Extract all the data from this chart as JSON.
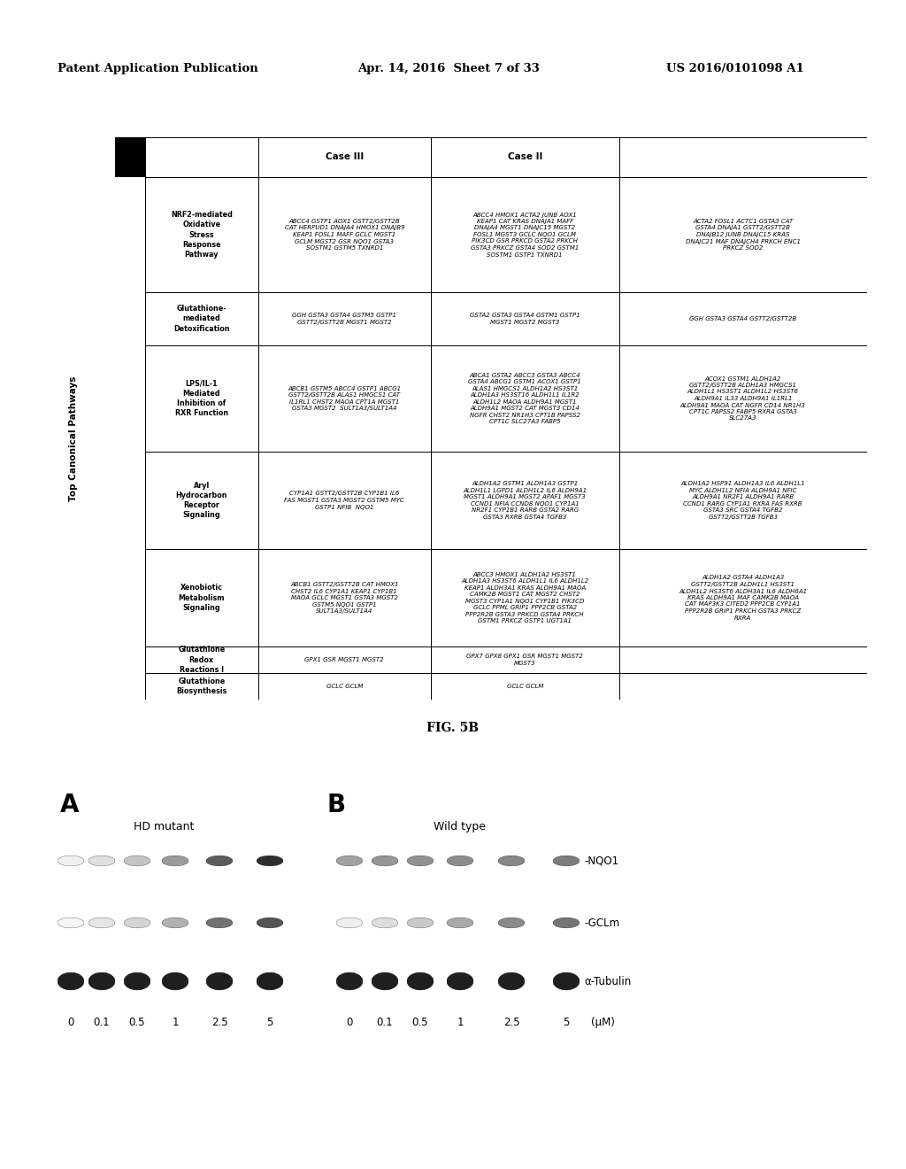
{
  "patent_header_left": "Patent Application Publication",
  "patent_header_mid": "Apr. 14, 2016  Sheet 7 of 33",
  "patent_header_right": "US 2016/0101098 A1",
  "fig_label": "FIG. 5B",
  "rows": [
    {
      "pathway": "NRF2-mediated\nOxidative\nStress\nResponse\nPathway",
      "case3": "ABCC4 GSTP1 AOX1 GSTT2/GSTT2B\nCAT HERPUD1 DNAJA4 HMOX1 DNAJB9\nKEAP1 FOSL1 MAFF GCLC MGST1\nGCLM MGST2 GSR NQO1 GSTA3\nSOSTM1 GSTM5 TXNRD1",
      "case2": "ABCC4 HMOX1 ACTA2 JUNB AOX1\nKEAP1 CAT KRAS DNAJA1 MAFF\nDNAJA4 MGST1 DNAJC15 MGST2\nFOSL1 MGST3 GCLC NQO1 GCLM\nPIK3CD GSR PRKCD GSTA2 PRKCH\nGSTA3 PRKCZ GSTA4 SOD2 GSTM1\nSOSTM1 GSTP1 TXNRD1",
      "casex": "ACTA2 FOSL1 ACTC1 GSTA3 CAT\nGSTA4 DNAJA1 GSTT2/GSTT2B\nDNAJB12 JUNB DNAJC15 KRAS\nDNAJC21 MAF DNAJCH4 PRKCH ENC1\nPRKCZ SOD2"
    },
    {
      "pathway": "Glutathione-\nmediated\nDetoxification",
      "case3": "GGH GSTA3 GSTA4 GSTM5 GSTP1\nGSTT2/GSTT2B MGST1 MGST2",
      "case2": "GSTA2 GSTA3 GSTA4 GSTM1 GSTP1\nMGST1 MGST2 MGST3",
      "casex": "GGH GSTA3 GSTA4 GSTT2/GSTT2B"
    },
    {
      "pathway": "LPS/IL-1\nMediated\nInhibition of\nRXR Function",
      "case3": "ABCB1 GSTM5 ABCC4 GSTP1 ABCG1\nGSTT2/GSTT2B ALAS1 HMGCS1 CAT\nIL1RL1 CHST2 MAOA CPT1A MGST1\nGSTA3 MGST2  SULT1A3/SULT1A4",
      "case2": "ABCA1 GSTA2 ABCC3 GSTA3 ABCC4\nGSTA4 ABCG1 GSTM1 ACOX1 GSTP1\nALAS1 HMGCS1 ALDH1A2 HS3ST1\nALDH1A3 HS3ST16 ALDH1L1 IL1R2\nALDH1L2 MAOA ALDH9A1 MGST1\nALDH9A1 MGST2 CAT MGST3 CD14\nNGFR CHST2 NR1H3 CPT1B PAPSS2\nCPT1C SLC27A3 FABP5",
      "casex": "ACOX1 GSTM1 ALDH1A2\nGSTT2/GSTT2B ALDH1A3 HMGCS1\nALDH1L1 HS3ST1 ALDH1L2 HS3ST6\nALDH9A1 IL33 ALDH9A1 IL1RL1\nALDH9A1 MAOA CAT NGFR CD14 NR1H3\nCPT1C PAPSS2 FABP5 RXRA GSTA3\nSLC27A3"
    },
    {
      "pathway": "Aryl\nHydrocarbon\nReceptor\nSignaling",
      "case3": "CYP1A1 GSTT2/GSTT2B CYP1B1 IL6\nFAS MGST1 GSTA3 MGST2 GSTM5 MYC\nGSTP1 NFIB  NQO1",
      "case2": "ALDH1A2 GSTM1 ALDH1A3 GSTP1\nALDH1L1 LGPD1 ALDH1L2 IL6 ALDH9A1\nMGST1 ALDH9A1 MGST2 APAF1 MGST3\nCCND1 NFIA CCND8 NQO1 CYP1A1\nNR2F1 CYP1B1 RARB GSTA2 RARG\nGSTA3 RXRB GSTA4 TGFB3",
      "casex": "ALDH1A2 HSP91 ALDH1A3 IL6 ALDH1L1\nMYC ALDH1L2 NFIA ALDH9A1 NFIC\nALDH9A1 NR2F1 ALDH9A1 RARB\nCCND1 RARG CYP1A1 RXRA FAS RXRB\nGSTA3 SRC GSTA4 TGFB2\nGSTT2/GSTT2B TGFB3"
    },
    {
      "pathway": "Xenobiotic\nMetabolism\nSignaling",
      "case3": "ABCB1 GSTT2/GSTT2B CAT HMOX1\nCHST2 IL6 CYP1A1 KEAP1 CYP1B1\nMAOA GCLC MGST1 GSTA3 MGST2\nGSTM5 NQO1 GSTP1\nSULT1A3/SULT1A4",
      "case2": "ABCC3 HMOX1 ALDH1A2 HS3ST1\nALDH1A3 HS3ST6 ALDH1L1 IL6 ALDH1L2\nKEAP1 ALDH3A1 KRAS ALDH9A1 MAOA\nCAMK2B MGST1 CAT MGST2 CHST2\nMGST3 CYP1A1 NQO1 CYP1B1 PIK3CD\nGCLC PPML GRIP1 PPP2CB GSTA2\nPPP2R2B GSTA3 PRKCD GSTA4 PRKCH\nGSTM1 PRKCZ GSTP1 UGT1A1",
      "casex": "ALDH1A2 GSTA4 ALDH1A3\nGSTT2/GSTT2B ALDH1L1 HS3ST1\nALDH1L2 HS3ST6 ALDH3A1 IL6 ALDH6A1\nKRAS ALDH9A1 MAF CAMK2B MAOA\nCAT MAP3K3 CITED2 PPP2CB CYP1A1\nPPP2R2B GRIP1 PRKCH GSTA3 PRKCZ\nRXRA"
    },
    {
      "pathway": "Glutathione\nRedox\nReactions I",
      "case3": "GPX1 GSR MGST1 MGST2",
      "case2": "GPX7 GPX8 GPX1 GSR MGST1 MGST2\nMGST3",
      "casex": ""
    },
    {
      "pathway": "Glutathione\nBiosynthesis",
      "case3": "GCLC GCLM",
      "case2": "GCLC GCLM",
      "casex": ""
    }
  ],
  "wb_label_A": "A",
  "wb_label_B": "B",
  "wb_HD_mutant": "HD mutant",
  "wb_Wild_type": "Wild type",
  "wb_band_labels": [
    "-NQO1",
    "-GCLm",
    "α-Tubulin"
  ],
  "wb_hd_intensities": [
    [
      0.07,
      0.15,
      0.28,
      0.48,
      0.78,
      1.0
    ],
    [
      0.05,
      0.12,
      0.2,
      0.38,
      0.68,
      0.82
    ],
    [
      1.0,
      1.0,
      1.0,
      1.0,
      1.0,
      1.0
    ]
  ],
  "wb_wt_intensities": [
    [
      0.45,
      0.5,
      0.52,
      0.55,
      0.58,
      0.62
    ],
    [
      0.08,
      0.16,
      0.26,
      0.4,
      0.56,
      0.66
    ],
    [
      1.0,
      1.0,
      1.0,
      1.0,
      1.0,
      1.0
    ]
  ],
  "wb_x_labels": [
    "0",
    "0.1",
    "0.5",
    "1",
    "2.5",
    "5"
  ],
  "wb_x_unit": "(μM)",
  "background_color": "#ffffff"
}
